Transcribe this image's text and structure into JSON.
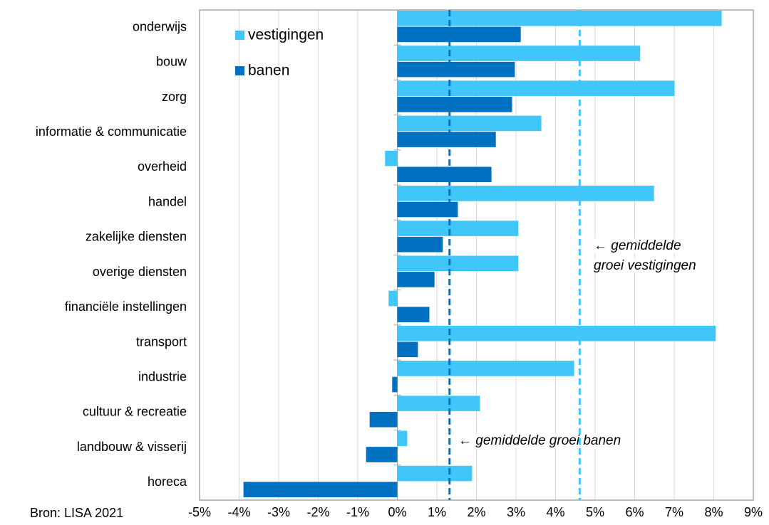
{
  "chart_data": {
    "type": "bar",
    "orientation": "horizontal",
    "source": "Bron: LISA 2021",
    "categories": [
      "onderwijs",
      "bouw",
      "zorg",
      "informatie & communicatie",
      "overheid",
      "handel",
      "zakelijke diensten",
      "overige diensten",
      "financiële instellingen",
      "transport",
      "industrie",
      "cultuur & recreatie",
      "landbouw & visserij",
      "horeca"
    ],
    "series": [
      {
        "name": "vestigingen",
        "color": "#41c6f9",
        "values": [
          8.2,
          6.14,
          7.01,
          3.64,
          -0.31,
          6.49,
          3.06,
          3.06,
          -0.22,
          8.05,
          4.47,
          2.09,
          0.25,
          1.89
        ]
      },
      {
        "name": "banen",
        "color": "#0070c0",
        "values": [
          3.12,
          2.97,
          2.9,
          2.49,
          2.38,
          1.53,
          1.15,
          0.94,
          0.81,
          0.52,
          -0.13,
          -0.7,
          -0.79,
          -3.89
        ]
      }
    ],
    "reference_lines": [
      {
        "value": 1.32,
        "color": "#0070c0",
        "label": [
          "← gemiddelde groei banen"
        ]
      },
      {
        "value": 4.61,
        "color": "#41c6f9",
        "label": [
          "← gemiddelde",
          "groei vestigingen"
        ]
      }
    ],
    "xlim": [
      -5,
      9
    ],
    "xticks": [
      {
        "value": -5,
        "label": "-5%"
      },
      {
        "value": -4,
        "label": "-4%"
      },
      {
        "value": -3,
        "label": "-3%"
      },
      {
        "value": -2,
        "label": "-2%"
      },
      {
        "value": -1,
        "label": "-1%"
      },
      {
        "value": 0,
        "label": "0%"
      },
      {
        "value": 1,
        "label": "1%"
      },
      {
        "value": 2,
        "label": "2%"
      },
      {
        "value": 3,
        "label": "3%"
      },
      {
        "value": 4,
        "label": "4%"
      },
      {
        "value": 5,
        "label": "5%"
      },
      {
        "value": 6,
        "label": "6%"
      },
      {
        "value": 7,
        "label": "7%"
      },
      {
        "value": 8,
        "label": "8%"
      },
      {
        "value": 9,
        "label": "9%"
      }
    ],
    "grid": true,
    "legend": "top-left"
  }
}
